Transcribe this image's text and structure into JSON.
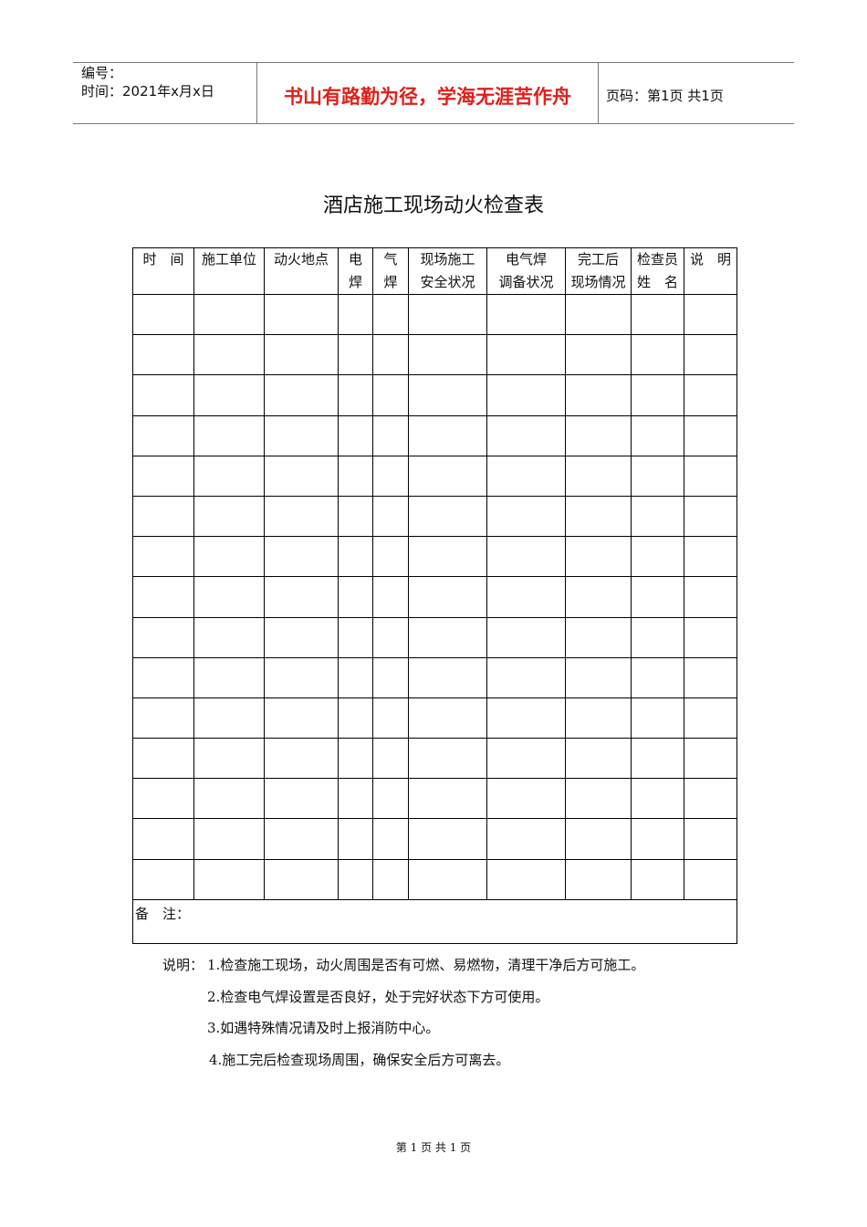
{
  "header": {
    "number_label": "编号：",
    "date_label": "时间：2021年x月x日",
    "motto": "书山有路勤为径，学海无涯苦作舟",
    "page_info": "页码：第1页  共1页"
  },
  "title": "酒店施工现场动火检查表",
  "table": {
    "columns": [
      [
        "时　间",
        ""
      ],
      [
        "施工单位",
        ""
      ],
      [
        "动火地点",
        ""
      ],
      [
        "电",
        "焊"
      ],
      [
        "气",
        "焊"
      ],
      [
        "现场施工",
        "安全状况"
      ],
      [
        "电气焊",
        "调备状况"
      ],
      [
        "完工后",
        "现场情况"
      ],
      [
        "检查员",
        "姓　名"
      ],
      [
        "说　明",
        ""
      ]
    ],
    "empty_rows": 15,
    "remark_label": "备　注："
  },
  "notes": {
    "label": "说明：",
    "items": [
      "1.检查施工现场，动火周围是否有可燃、易燃物，清理干净后方可施工。",
      "2.检查电气焊设置是否良好，处于完好状态下方可使用。",
      "3.如遇特殊情况请及时上报消防中心。",
      "4.施工完后检查现场周围，确保安全后方可离去。"
    ]
  },
  "footer": "第 1 页 共 1 页"
}
